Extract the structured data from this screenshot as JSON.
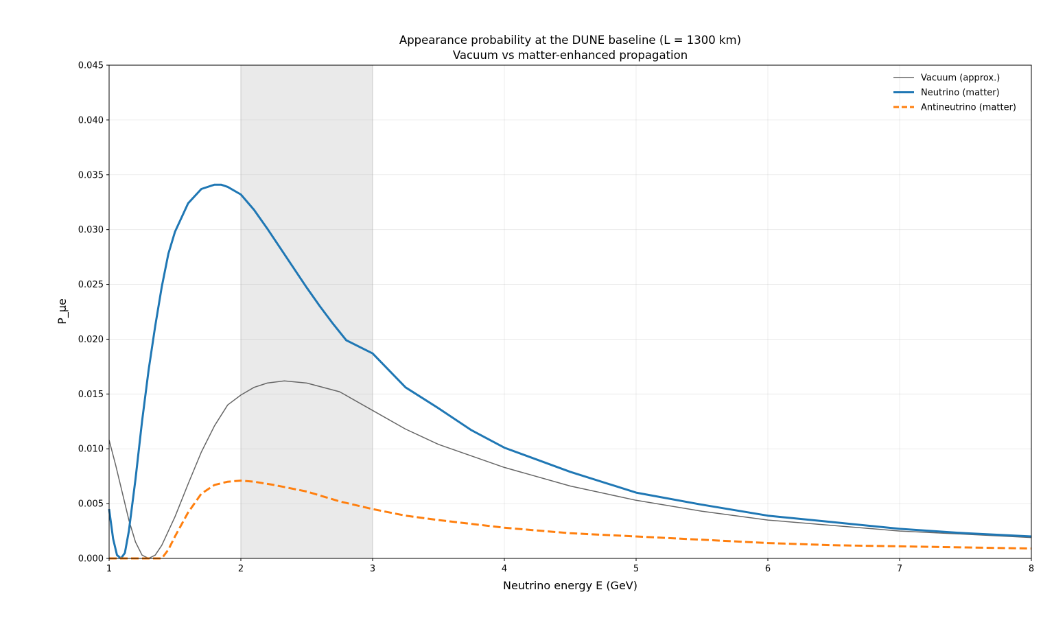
{
  "chart_data": {
    "type": "line",
    "title_line1": "Appearance probability at the DUNE baseline (L = 1300 km)",
    "title_line2": "Vacuum vs matter-enhanced propagation",
    "xlabel": "Neutrino energy E (GeV)",
    "ylabel": "P_μe",
    "xlim": [
      1,
      8
    ],
    "ylim": [
      0,
      0.045
    ],
    "xticks": [
      "1",
      "2",
      "3",
      "4",
      "5",
      "6",
      "7",
      "8"
    ],
    "yticks": [
      "0.000",
      "0.005",
      "0.010",
      "0.015",
      "0.020",
      "0.025",
      "0.030",
      "0.035",
      "0.040",
      "0.045"
    ],
    "grid": true,
    "legend_position": "top-right",
    "shaded_region": [
      2,
      3
    ],
    "series": [
      {
        "name": "Vacuum (approx.)",
        "color": "#666666",
        "style": "solid-thin",
        "points": [
          [
            1.0,
            0.0108
          ],
          [
            1.05,
            0.0085
          ],
          [
            1.1,
            0.006
          ],
          [
            1.15,
            0.0035
          ],
          [
            1.2,
            0.0015
          ],
          [
            1.25,
            0.0003
          ],
          [
            1.3,
            0.0
          ],
          [
            1.35,
            0.0003
          ],
          [
            1.4,
            0.0012
          ],
          [
            1.5,
            0.0038
          ],
          [
            1.6,
            0.0068
          ],
          [
            1.7,
            0.0097
          ],
          [
            1.8,
            0.0121
          ],
          [
            1.9,
            0.014
          ],
          [
            2.0,
            0.0149
          ],
          [
            2.1,
            0.0156
          ],
          [
            2.2,
            0.016
          ],
          [
            2.33,
            0.0162
          ],
          [
            2.5,
            0.016
          ],
          [
            2.75,
            0.0152
          ],
          [
            3.0,
            0.0135
          ],
          [
            3.25,
            0.0118
          ],
          [
            3.5,
            0.0104
          ],
          [
            4.0,
            0.0083
          ],
          [
            4.5,
            0.0066
          ],
          [
            5.0,
            0.0053
          ],
          [
            5.5,
            0.0043
          ],
          [
            6.0,
            0.0035
          ],
          [
            6.5,
            0.003
          ],
          [
            7.0,
            0.0025
          ],
          [
            7.5,
            0.0022
          ],
          [
            8.0,
            0.0019
          ]
        ]
      },
      {
        "name": "Neutrino (matter)",
        "color": "#1f77b4",
        "style": "solid-thick",
        "points": [
          [
            1.0,
            0.0045
          ],
          [
            1.03,
            0.0018
          ],
          [
            1.06,
            0.0003
          ],
          [
            1.09,
            0.0
          ],
          [
            1.12,
            0.0005
          ],
          [
            1.15,
            0.0025
          ],
          [
            1.2,
            0.0072
          ],
          [
            1.25,
            0.0125
          ],
          [
            1.3,
            0.0172
          ],
          [
            1.35,
            0.0212
          ],
          [
            1.4,
            0.0248
          ],
          [
            1.45,
            0.0278
          ],
          [
            1.5,
            0.0298
          ],
          [
            1.6,
            0.0324
          ],
          [
            1.7,
            0.0337
          ],
          [
            1.8,
            0.0341
          ],
          [
            1.85,
            0.0341
          ],
          [
            1.9,
            0.0339
          ],
          [
            2.0,
            0.0332
          ],
          [
            2.1,
            0.0318
          ],
          [
            2.2,
            0.0301
          ],
          [
            2.3,
            0.0283
          ],
          [
            2.4,
            0.0265
          ],
          [
            2.5,
            0.0247
          ],
          [
            2.6,
            0.023
          ],
          [
            2.7,
            0.0214
          ],
          [
            2.8,
            0.0199
          ],
          [
            3.0,
            0.0187
          ],
          [
            3.25,
            0.0156
          ],
          [
            3.5,
            0.0137
          ],
          [
            3.75,
            0.0117
          ],
          [
            4.0,
            0.0101
          ],
          [
            4.5,
            0.0079
          ],
          [
            5.0,
            0.006
          ],
          [
            5.5,
            0.0049
          ],
          [
            6.0,
            0.0039
          ],
          [
            6.5,
            0.0033
          ],
          [
            7.0,
            0.0027
          ],
          [
            7.5,
            0.0023
          ],
          [
            8.0,
            0.002
          ]
        ]
      },
      {
        "name": "Antineutrino (matter)",
        "color": "#ff7f0e",
        "style": "dashed-thick",
        "points": [
          [
            1.0,
            0.0
          ],
          [
            1.2,
            0.0
          ],
          [
            1.4,
            0.0
          ],
          [
            1.45,
            0.0008
          ],
          [
            1.5,
            0.002
          ],
          [
            1.6,
            0.0042
          ],
          [
            1.7,
            0.0059
          ],
          [
            1.8,
            0.0067
          ],
          [
            1.9,
            0.007
          ],
          [
            2.0,
            0.0071
          ],
          [
            2.1,
            0.007
          ],
          [
            2.25,
            0.0067
          ],
          [
            2.5,
            0.0061
          ],
          [
            2.75,
            0.0052
          ],
          [
            3.0,
            0.0045
          ],
          [
            3.25,
            0.0039
          ],
          [
            3.5,
            0.0035
          ],
          [
            4.0,
            0.0028
          ],
          [
            4.5,
            0.0023
          ],
          [
            5.0,
            0.002
          ],
          [
            5.5,
            0.0017
          ],
          [
            6.0,
            0.0014
          ],
          [
            6.5,
            0.0012
          ],
          [
            7.0,
            0.0011
          ],
          [
            7.5,
            0.001
          ],
          [
            8.0,
            0.0009
          ]
        ]
      }
    ]
  }
}
